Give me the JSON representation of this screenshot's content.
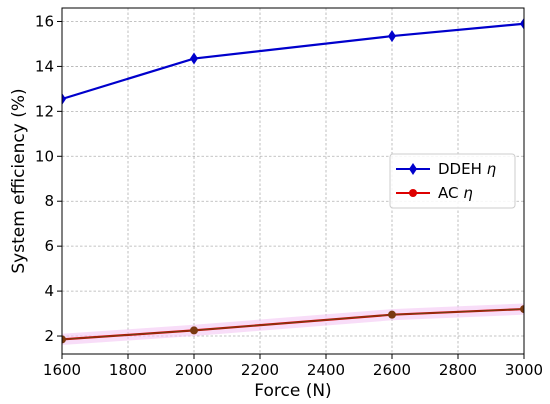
{
  "chart_data": {
    "type": "line",
    "xlabel": "Force (N)",
    "ylabel": "System efficiency (%)",
    "xlim": [
      1600,
      3000
    ],
    "ylim": [
      1.2,
      16.6
    ],
    "xticks": [
      1600,
      1800,
      2000,
      2200,
      2400,
      2600,
      2800,
      3000
    ],
    "yticks": [
      2,
      4,
      6,
      8,
      10,
      12,
      14,
      16
    ],
    "grid": true,
    "legend_position": "center-right",
    "series": [
      {
        "name": "DDEH",
        "symbol": "η",
        "color": "#0000cc",
        "marker": "diamond",
        "x": [
          1600,
          2000,
          2600,
          3000
        ],
        "y": [
          12.55,
          14.35,
          15.35,
          15.9
        ]
      },
      {
        "name": "AC",
        "symbol": "η",
        "color": "#dd0000",
        "marker": "circle",
        "x": [
          1600,
          2000,
          2600,
          3000
        ],
        "y": [
          1.85,
          2.25,
          2.95,
          3.2
        ]
      }
    ]
  }
}
